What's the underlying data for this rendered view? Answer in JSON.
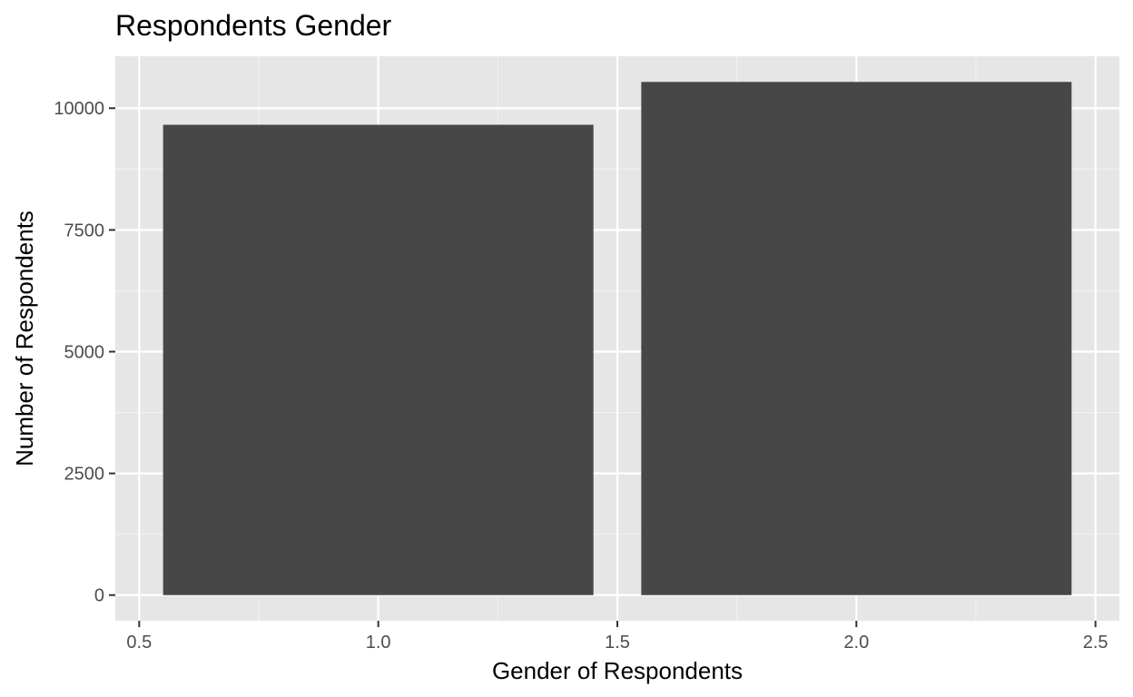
{
  "chart_data": {
    "type": "bar",
    "title": "Respondents Gender",
    "xlabel": "Gender of Respondents",
    "ylabel": "Number of Respondents",
    "x": [
      1,
      2
    ],
    "values": [
      9660,
      10540
    ],
    "bar_width": 0.9,
    "xlim": [
      0.45,
      2.55
    ],
    "ylim": [
      -527,
      11067
    ],
    "x_ticks": [
      0.5,
      1.0,
      1.5,
      2.0,
      2.5
    ],
    "x_tick_labels": [
      "0.5",
      "1.0",
      "1.5",
      "2.0",
      "2.5"
    ],
    "y_ticks": [
      0,
      2500,
      5000,
      7500,
      10000
    ],
    "y_tick_labels": [
      "0",
      "2500",
      "5000",
      "7500",
      "10000"
    ],
    "grid": true,
    "bar_color": "#474747",
    "panel_color": "#e6e6e6"
  }
}
